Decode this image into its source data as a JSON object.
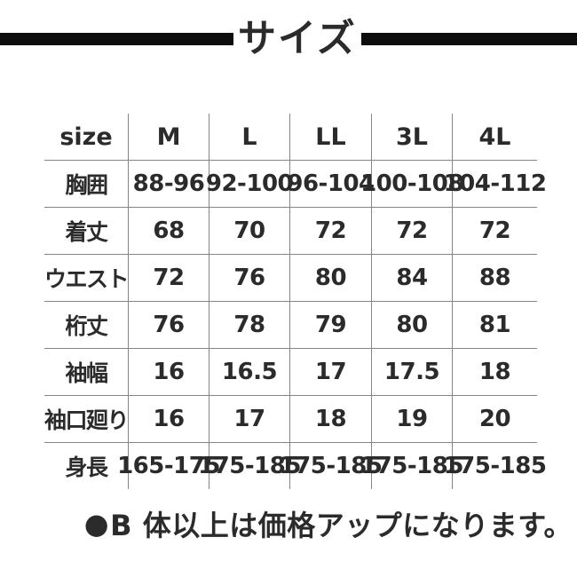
{
  "chart_data": {
    "type": "table",
    "title": "サイズ",
    "columns": [
      "size",
      "M",
      "L",
      "LL",
      "3L",
      "4L"
    ],
    "rows": [
      {
        "label": "胸囲",
        "values": [
          "88-96",
          "92-100",
          "96-104",
          "100-108",
          "104-112"
        ]
      },
      {
        "label": "着丈",
        "values": [
          "68",
          "70",
          "72",
          "72",
          "72"
        ]
      },
      {
        "label": "ウエスト",
        "values": [
          "72",
          "76",
          "80",
          "84",
          "88"
        ]
      },
      {
        "label": "桁丈",
        "values": [
          "76",
          "78",
          "79",
          "80",
          "81"
        ]
      },
      {
        "label": "袖幅",
        "values": [
          "16",
          "16.5",
          "17",
          "17.5",
          "18"
        ]
      },
      {
        "label": "袖口廻り",
        "values": [
          "16",
          "17",
          "18",
          "19",
          "20"
        ]
      },
      {
        "label": "身長",
        "values": [
          "165-175",
          "175-185",
          "175-185",
          "175-185",
          "175-185"
        ]
      }
    ],
    "note_bullet": "●",
    "note": "B 体以上は価格アップになります。",
    "layout": {
      "grid": "on",
      "legend": "none"
    }
  },
  "colors": {
    "title_rule": "#0d0d0d",
    "text": "#2b2b2b",
    "grid_line": "#858585",
    "background": "#ffffff"
  }
}
